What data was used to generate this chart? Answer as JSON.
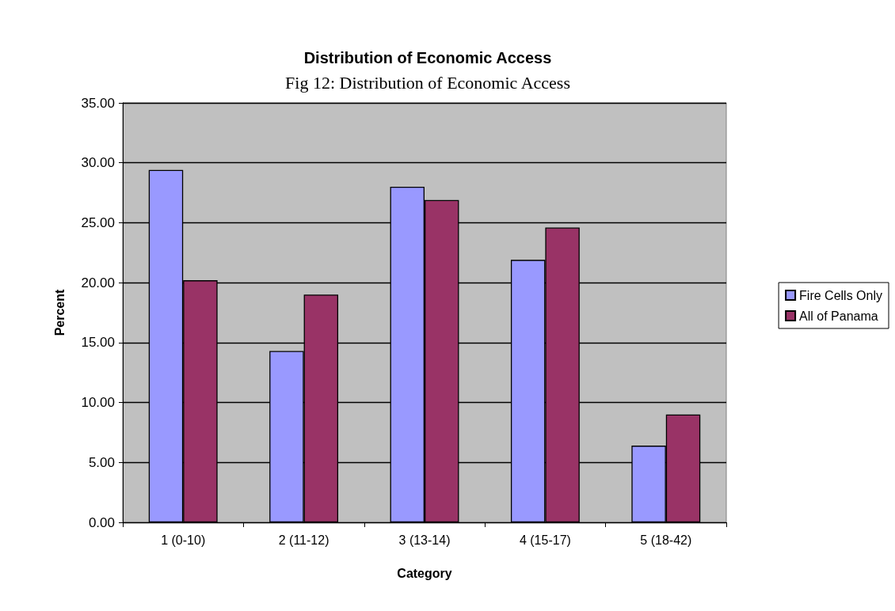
{
  "chart_data": {
    "type": "bar",
    "title": "Distribution of Economic Access",
    "subtitle": "Fig 12: Distribution of Economic Access",
    "xlabel": "Category",
    "ylabel": "Percent",
    "categories": [
      "1 (0-10)",
      "2 (11-12)",
      "3 (13-14)",
      "4 (15-17)",
      "5 (18-42)"
    ],
    "series": [
      {
        "name": "Fire Cells Only",
        "color": "#9999ff",
        "values": [
          29.4,
          14.3,
          28.0,
          21.9,
          6.4
        ]
      },
      {
        "name": "All of Panama",
        "color": "#993366",
        "values": [
          20.2,
          19.0,
          26.9,
          24.6,
          9.0
        ]
      }
    ],
    "ylim": [
      0,
      35
    ],
    "yticks": [
      {
        "value": 0,
        "label": "0.00"
      },
      {
        "value": 5,
        "label": "5.00"
      },
      {
        "value": 10,
        "label": "10.00"
      },
      {
        "value": 15,
        "label": "15.00"
      },
      {
        "value": 20,
        "label": "20.00"
      },
      {
        "value": 25,
        "label": "25.00"
      },
      {
        "value": 30,
        "label": "30.00"
      },
      {
        "value": 35,
        "label": "35.00"
      }
    ],
    "grid": "y",
    "legend": "right"
  }
}
